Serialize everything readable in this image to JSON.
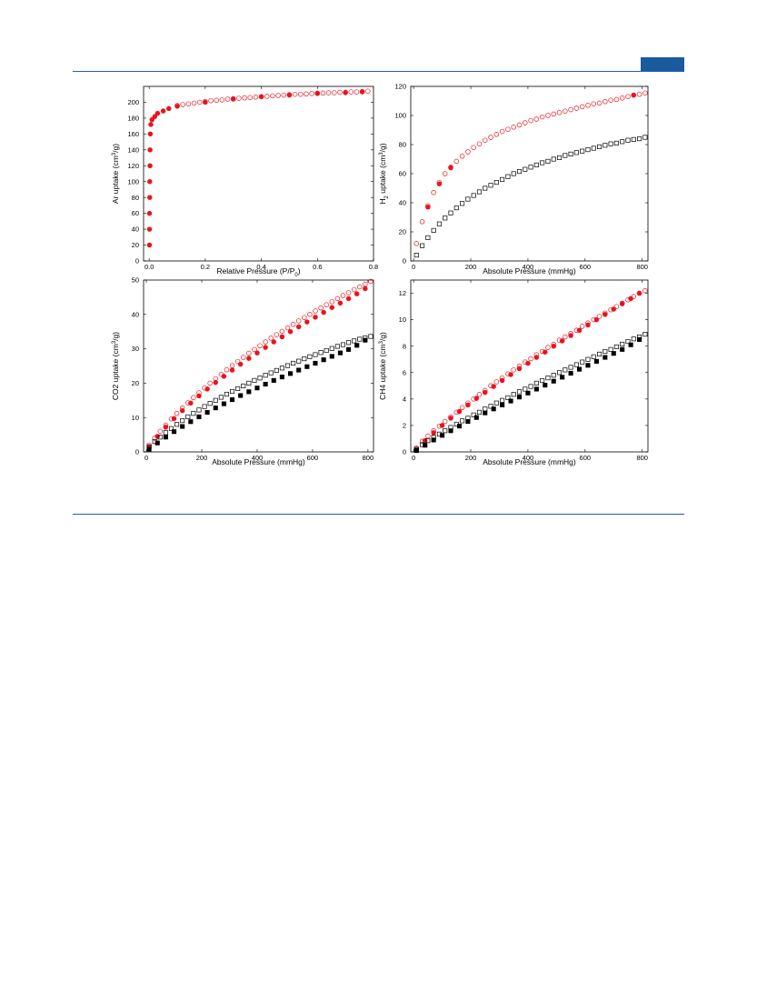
{
  "colors": {
    "rule": "#1f5fa5",
    "tab": "#1a5a9e",
    "red": "#e8141e",
    "black": "#000000"
  },
  "chart_data": [
    {
      "type": "scatter",
      "xlabel": "Relative Pressure (P/P0)",
      "ylabel": "Ar uptake (cm3/g)",
      "xlim": [
        -0.02,
        0.8
      ],
      "ylim": [
        0,
        220
      ],
      "xticks": [
        0.0,
        0.2,
        0.4,
        0.6,
        0.8
      ],
      "xtick_labels": [
        "0.0",
        "0.2",
        "0.4",
        "0.6",
        "0.8"
      ],
      "yticks": [
        0,
        20,
        40,
        60,
        80,
        100,
        120,
        140,
        160,
        180,
        200
      ],
      "ytick_labels": [
        "0",
        "20",
        "40",
        "60",
        "80",
        "100",
        "120",
        "140",
        "160",
        "180",
        "200"
      ],
      "series": [
        {
          "marker": "circle-filled",
          "color": "#e8141e",
          "x": [
            0.001,
            0.001,
            0.001,
            0.002,
            0.002,
            0.003,
            0.003,
            0.004,
            0.006,
            0.01,
            0.02,
            0.03,
            0.05,
            0.07,
            0.1,
            0.2,
            0.3,
            0.4,
            0.5,
            0.6,
            0.7,
            0.76
          ],
          "y": [
            20,
            40,
            60,
            80,
            100,
            120,
            140,
            160,
            172,
            178,
            182,
            186,
            189,
            192,
            195,
            200,
            204,
            207,
            209,
            211,
            212,
            213
          ]
        },
        {
          "marker": "circle-open",
          "color": "#e8141e",
          "x": [
            0.1,
            0.12,
            0.14,
            0.16,
            0.18,
            0.2,
            0.22,
            0.24,
            0.26,
            0.28,
            0.3,
            0.32,
            0.34,
            0.36,
            0.38,
            0.4,
            0.42,
            0.44,
            0.46,
            0.48,
            0.5,
            0.52,
            0.54,
            0.56,
            0.58,
            0.6,
            0.62,
            0.64,
            0.66,
            0.68,
            0.7,
            0.72,
            0.74,
            0.76,
            0.78
          ],
          "y": [
            196,
            197,
            198,
            199,
            200,
            201,
            202,
            202.5,
            203,
            204,
            204.5,
            205,
            205.5,
            206,
            206.5,
            207,
            207.5,
            208,
            208.5,
            209,
            209.5,
            210,
            210,
            210.5,
            211,
            211.5,
            211.5,
            212,
            212,
            212.5,
            212.5,
            213,
            213,
            213.5,
            214
          ]
        }
      ]
    },
    {
      "type": "scatter",
      "xlabel": "Absolute Pressure (mmHg)",
      "ylabel": "H2 uptake (cm3/g)",
      "xlim": [
        -10,
        820
      ],
      "ylim": [
        0,
        120
      ],
      "xticks": [
        0,
        200,
        400,
        600,
        800
      ],
      "xtick_labels": [
        "0",
        "200",
        "400",
        "600",
        "800"
      ],
      "yticks": [
        0,
        20,
        40,
        60,
        80,
        100,
        120
      ],
      "ytick_labels": [
        "0",
        "20",
        "40",
        "60",
        "80",
        "100",
        "120"
      ],
      "series": [
        {
          "marker": "circle-open",
          "color": "#e8141e",
          "x": [
            10,
            30,
            50,
            70,
            90,
            110,
            130,
            150,
            170,
            190,
            210,
            230,
            250,
            270,
            290,
            310,
            330,
            350,
            370,
            390,
            410,
            430,
            450,
            470,
            490,
            510,
            530,
            550,
            570,
            590,
            610,
            630,
            650,
            670,
            690,
            710,
            730,
            750,
            770,
            790,
            810
          ],
          "y": [
            12,
            27,
            38,
            47,
            54,
            60,
            64.5,
            68.5,
            72,
            75,
            78,
            80.5,
            83,
            85,
            87,
            89,
            90.5,
            92,
            93.5,
            95,
            96.5,
            97.5,
            99,
            100,
            101,
            102,
            103,
            104,
            105,
            106,
            107,
            108,
            108.5,
            109.5,
            110.5,
            111,
            112,
            113,
            114,
            114.5,
            115.5
          ]
        },
        {
          "marker": "circle-filled",
          "color": "#e8141e",
          "x": [
            50,
            90,
            130,
            770
          ],
          "y": [
            37,
            53,
            64,
            114
          ]
        },
        {
          "marker": "square-open",
          "color": "#000000",
          "x": [
            10,
            30,
            50,
            70,
            90,
            110,
            130,
            150,
            170,
            190,
            210,
            230,
            250,
            270,
            290,
            310,
            330,
            350,
            370,
            390,
            410,
            430,
            450,
            470,
            490,
            510,
            530,
            550,
            570,
            590,
            610,
            630,
            650,
            670,
            690,
            710,
            730,
            750,
            770,
            790,
            810
          ],
          "y": [
            4,
            10.5,
            16,
            21,
            25.5,
            29.5,
            33,
            36.5,
            39.5,
            42.5,
            45,
            47.5,
            50,
            52,
            54,
            56,
            58,
            60,
            61.5,
            63,
            64.5,
            66,
            67.5,
            68.5,
            70,
            71,
            72.5,
            73.5,
            74.5,
            75.5,
            76.5,
            77.5,
            78.5,
            79.5,
            80.5,
            81,
            82,
            83,
            83.5,
            84,
            85
          ]
        }
      ]
    },
    {
      "type": "scatter",
      "xlabel": "Absolute Pressure (mmHg)",
      "ylabel": "CO2 uptake (cm3/g)",
      "xlim": [
        -10,
        820
      ],
      "ylim": [
        0,
        50
      ],
      "xticks": [
        0,
        200,
        400,
        600,
        800
      ],
      "xtick_labels": [
        "0",
        "200",
        "400",
        "600",
        "800"
      ],
      "yticks": [
        0,
        10,
        20,
        30,
        40,
        50
      ],
      "ytick_labels": [
        "0",
        "10",
        "20",
        "30",
        "40",
        "50"
      ],
      "series": [
        {
          "marker": "circle-open",
          "color": "#e8141e",
          "x": [
            10,
            30,
            50,
            70,
            90,
            110,
            130,
            150,
            170,
            190,
            210,
            230,
            250,
            270,
            290,
            310,
            330,
            350,
            370,
            390,
            410,
            430,
            450,
            470,
            490,
            510,
            530,
            550,
            570,
            590,
            610,
            630,
            650,
            670,
            690,
            710,
            730,
            750,
            770,
            790,
            810
          ],
          "y": [
            2,
            4,
            6,
            7.8,
            9.6,
            11.2,
            12.8,
            14.3,
            15.8,
            17.2,
            18.6,
            20,
            21.3,
            22.6,
            23.9,
            25.1,
            26.3,
            27.5,
            28.7,
            29.8,
            30.9,
            32,
            33.1,
            34.1,
            35.1,
            36.1,
            37.1,
            38.1,
            39.1,
            40,
            41,
            41.9,
            42.8,
            43.7,
            44.6,
            45.5,
            46.3,
            47.2,
            48,
            48.8,
            49.6
          ]
        },
        {
          "marker": "circle-filled",
          "color": "#e8141e",
          "x": [
            10,
            40,
            70,
            100,
            130,
            160,
            190,
            220,
            250,
            280,
            310,
            340,
            370,
            400,
            430,
            460,
            490,
            520,
            550,
            580,
            610,
            640,
            670,
            700,
            730,
            760,
            790
          ],
          "y": [
            1.5,
            4.5,
            7.2,
            9.7,
            12,
            14.2,
            16.3,
            18.3,
            20.2,
            22,
            23.8,
            25.5,
            27.2,
            28.8,
            30.4,
            32,
            33.5,
            35,
            36.4,
            37.8,
            39.2,
            40.6,
            42,
            43.3,
            44.6,
            46,
            47.5
          ]
        },
        {
          "marker": "square-open",
          "color": "#000000",
          "x": [
            10,
            30,
            50,
            70,
            90,
            110,
            130,
            150,
            170,
            190,
            210,
            230,
            250,
            270,
            290,
            310,
            330,
            350,
            370,
            390,
            410,
            430,
            450,
            470,
            490,
            510,
            530,
            550,
            570,
            590,
            610,
            630,
            650,
            670,
            690,
            710,
            730,
            750,
            770,
            790,
            810
          ],
          "y": [
            1.5,
            3,
            4.3,
            5.6,
            6.8,
            8,
            9.1,
            10.2,
            11.2,
            12.2,
            13.2,
            14.1,
            15,
            15.9,
            16.8,
            17.6,
            18.4,
            19.2,
            20,
            20.8,
            21.5,
            22.3,
            23,
            23.7,
            24.4,
            25.1,
            25.8,
            26.4,
            27.1,
            27.7,
            28.3,
            28.9,
            29.5,
            30.1,
            30.7,
            31.2,
            31.8,
            32.3,
            32.8,
            33.2,
            33.6
          ]
        },
        {
          "marker": "square-filled",
          "color": "#000000",
          "x": [
            10,
            40,
            70,
            100,
            130,
            160,
            190,
            220,
            250,
            280,
            310,
            340,
            370,
            400,
            430,
            460,
            490,
            520,
            550,
            580,
            610,
            640,
            670,
            700,
            730,
            760,
            790
          ],
          "y": [
            0.8,
            2.6,
            4.3,
            5.9,
            7.4,
            8.8,
            10.2,
            11.5,
            12.8,
            14,
            15.2,
            16.4,
            17.5,
            18.6,
            19.7,
            20.8,
            21.8,
            22.8,
            23.8,
            24.8,
            25.8,
            26.8,
            27.8,
            28.8,
            29.8,
            31,
            32.5
          ]
        }
      ]
    },
    {
      "type": "scatter",
      "xlabel": "Absolute Pressure (mmHg)",
      "ylabel": "CH4 uptake (cm3/g)",
      "xlim": [
        -10,
        820
      ],
      "ylim": [
        0,
        13
      ],
      "xticks": [
        0,
        200,
        400,
        600,
        800
      ],
      "xtick_labels": [
        "0",
        "200",
        "400",
        "600",
        "800"
      ],
      "yticks": [
        0,
        2,
        4,
        6,
        8,
        10,
        12
      ],
      "ytick_labels": [
        "0",
        "2",
        "4",
        "6",
        "8",
        "10",
        "12"
      ],
      "series": [
        {
          "marker": "circle-open",
          "color": "#e8141e",
          "x": [
            10,
            30,
            50,
            70,
            90,
            110,
            130,
            150,
            170,
            190,
            210,
            230,
            250,
            270,
            290,
            310,
            330,
            350,
            370,
            390,
            410,
            430,
            450,
            470,
            490,
            510,
            530,
            550,
            570,
            590,
            610,
            630,
            650,
            670,
            690,
            710,
            730,
            750,
            770,
            790,
            810
          ],
          "y": [
            0.3,
            0.8,
            1.2,
            1.6,
            1.95,
            2.3,
            2.65,
            3,
            3.35,
            3.7,
            4,
            4.35,
            4.65,
            5,
            5.3,
            5.6,
            5.9,
            6.2,
            6.5,
            6.8,
            7.05,
            7.35,
            7.6,
            7.9,
            8.15,
            8.45,
            8.7,
            8.95,
            9.2,
            9.5,
            9.75,
            10,
            10.25,
            10.5,
            10.75,
            11,
            11.25,
            11.5,
            11.75,
            12,
            12.2
          ]
        },
        {
          "marker": "circle-filled",
          "color": "#e8141e",
          "x": [
            10,
            40,
            70,
            100,
            130,
            160,
            190,
            220,
            250,
            280,
            310,
            340,
            370,
            400,
            430,
            460,
            490,
            520,
            550,
            580,
            610,
            640,
            670,
            700,
            730,
            760,
            790
          ],
          "y": [
            0.2,
            0.85,
            1.45,
            2,
            2.55,
            3.05,
            3.55,
            4.05,
            4.5,
            4.95,
            5.4,
            5.85,
            6.3,
            6.7,
            7.15,
            7.55,
            8,
            8.4,
            8.8,
            9.2,
            9.6,
            10,
            10.4,
            10.8,
            11.2,
            11.6,
            12
          ]
        },
        {
          "marker": "square-open",
          "color": "#000000",
          "x": [
            10,
            30,
            50,
            70,
            90,
            110,
            130,
            150,
            170,
            190,
            210,
            230,
            250,
            270,
            290,
            310,
            330,
            350,
            370,
            390,
            410,
            430,
            450,
            470,
            490,
            510,
            530,
            550,
            570,
            590,
            610,
            630,
            650,
            670,
            690,
            710,
            730,
            750,
            770,
            790,
            810
          ],
          "y": [
            0.2,
            0.55,
            0.85,
            1.1,
            1.35,
            1.6,
            1.85,
            2.1,
            2.35,
            2.55,
            2.8,
            3,
            3.25,
            3.45,
            3.7,
            3.9,
            4.1,
            4.35,
            4.55,
            4.75,
            4.95,
            5.2,
            5.4,
            5.6,
            5.8,
            6,
            6.2,
            6.4,
            6.6,
            6.8,
            7,
            7.2,
            7.4,
            7.6,
            7.75,
            7.95,
            8.15,
            8.35,
            8.55,
            8.7,
            8.9
          ]
        },
        {
          "marker": "square-filled",
          "color": "#000000",
          "x": [
            10,
            40,
            70,
            100,
            130,
            160,
            190,
            220,
            250,
            280,
            310,
            340,
            370,
            400,
            430,
            460,
            490,
            520,
            550,
            580,
            610,
            640,
            670,
            700,
            730,
            760,
            790
          ],
          "y": [
            0.1,
            0.5,
            0.9,
            1.25,
            1.6,
            1.95,
            2.3,
            2.6,
            2.95,
            3.25,
            3.55,
            3.85,
            4.15,
            4.45,
            4.75,
            5.05,
            5.35,
            5.65,
            5.95,
            6.25,
            6.55,
            6.85,
            7.15,
            7.45,
            7.75,
            8.1,
            8.5
          ]
        }
      ]
    }
  ]
}
